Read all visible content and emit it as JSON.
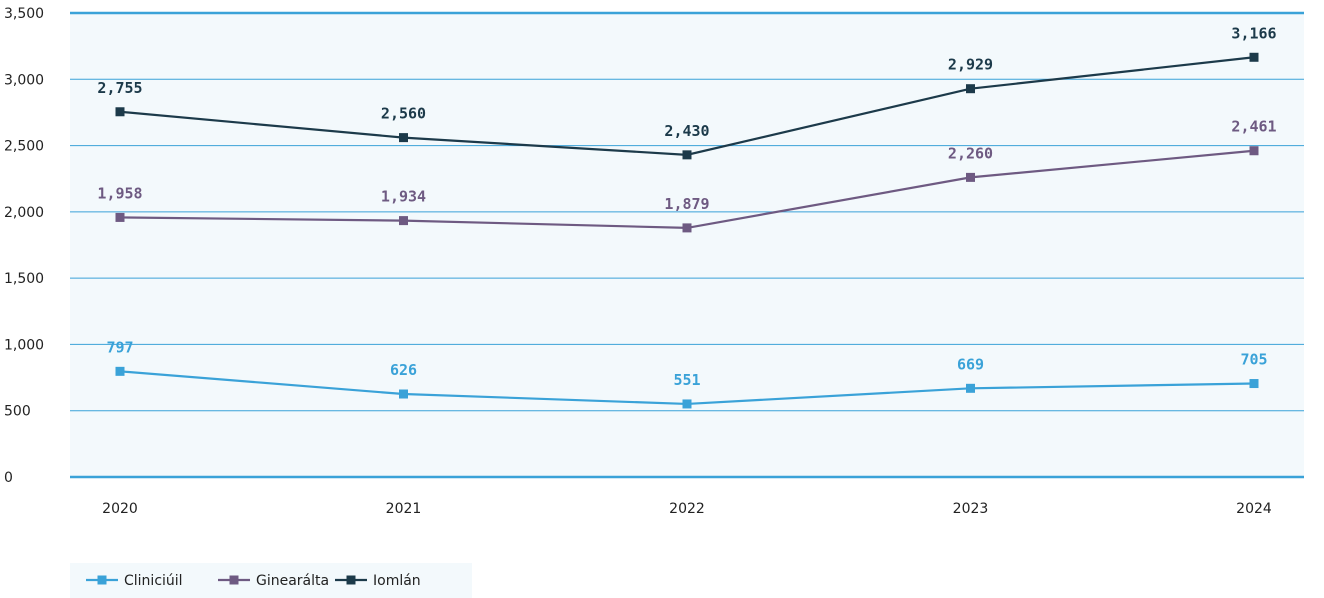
{
  "chart_data": {
    "type": "line",
    "categories": [
      "2020",
      "2021",
      "2022",
      "2023",
      "2024"
    ],
    "ylim": [
      0,
      3500
    ],
    "yticks": [
      0,
      500,
      1000,
      1500,
      2000,
      2500,
      3000,
      3500
    ],
    "ytick_labels": [
      "0",
      "500",
      "1,000",
      "1,500",
      "2,000",
      "2,500",
      "3,000",
      "3,500"
    ],
    "grid": true,
    "legend_position": "bottom-left",
    "series": [
      {
        "name": "Cliniciúil",
        "color": "#3aa2d8",
        "values": [
          797,
          626,
          551,
          669,
          705
        ],
        "labels": [
          "797",
          "626",
          "551",
          "669",
          "705"
        ]
      },
      {
        "name": "Ginearálta",
        "color": "#6e5a82",
        "values": [
          1958,
          1934,
          1879,
          2260,
          2461
        ],
        "labels": [
          "1,958",
          "1,934",
          "1,879",
          "2,260",
          "2,461"
        ]
      },
      {
        "name": "Iomlán",
        "color": "#1c3a4a",
        "values": [
          2755,
          2560,
          2430,
          2929,
          3166
        ],
        "labels": [
          "2,755",
          "2,560",
          "2,430",
          "2,929",
          "3,166"
        ]
      }
    ],
    "colors": {
      "plot_background": "#f3f9fc",
      "gridline": "#3aa2d8",
      "legend_background": "#f3f9fc"
    }
  }
}
